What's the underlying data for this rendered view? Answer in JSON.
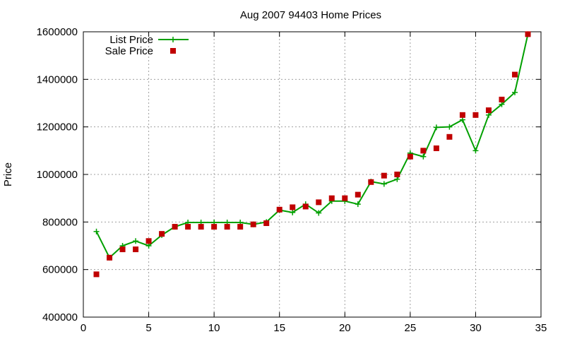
{
  "chart_data": {
    "type": "line",
    "title": "Aug 2007 94403 Home Prices",
    "xlabel": "",
    "ylabel": "Price",
    "xlim": [
      0,
      35
    ],
    "ylim": [
      400000,
      1600000
    ],
    "xticks": [
      0,
      5,
      10,
      15,
      20,
      25,
      30,
      35
    ],
    "yticks": [
      400000,
      600000,
      800000,
      1000000,
      1200000,
      1400000,
      1600000
    ],
    "xtick_labels": [
      "0",
      "5",
      "10",
      "15",
      "20",
      "25",
      "30",
      "35"
    ],
    "ytick_labels": [
      "400000",
      "600000",
      "800000",
      "1000000",
      "1200000",
      "1400000",
      "1600000"
    ],
    "grid": true,
    "legend_position": "top-left",
    "series": [
      {
        "name": "List Price",
        "style": "line-with-plus-markers",
        "color": "#00a000",
        "x": [
          1,
          2,
          3,
          4,
          5,
          6,
          7,
          8,
          9,
          10,
          11,
          12,
          13,
          14,
          15,
          16,
          17,
          18,
          19,
          20,
          21,
          22,
          23,
          24,
          25,
          26,
          27,
          28,
          29,
          30,
          31,
          32,
          33,
          34
        ],
        "y": [
          760000,
          650000,
          700000,
          720000,
          700000,
          745000,
          780000,
          798000,
          798000,
          798000,
          798000,
          798000,
          790000,
          800000,
          850000,
          840000,
          875000,
          838000,
          888000,
          888000,
          875000,
          970000,
          960000,
          980000,
          1090000,
          1075000,
          1198000,
          1200000,
          1230000,
          1100000,
          1250000,
          1295000,
          1345000,
          1590000
        ]
      },
      {
        "name": "Sale Price",
        "style": "square-markers",
        "color": "#c00000",
        "x": [
          1,
          2,
          3,
          4,
          5,
          6,
          7,
          8,
          9,
          10,
          11,
          12,
          13,
          14,
          15,
          16,
          17,
          18,
          19,
          20,
          21,
          22,
          23,
          24,
          25,
          26,
          27,
          28,
          29,
          30,
          31,
          32,
          33,
          34
        ],
        "y": [
          580000,
          650000,
          685000,
          685000,
          720000,
          750000,
          780000,
          780000,
          780000,
          780000,
          780000,
          780000,
          790000,
          795000,
          852000,
          862000,
          865000,
          883000,
          900000,
          900000,
          915000,
          968000,
          995000,
          1000000,
          1075000,
          1100000,
          1110000,
          1158000,
          1250000,
          1250000,
          1270000,
          1315000,
          1420000,
          1590000
        ]
      }
    ]
  }
}
